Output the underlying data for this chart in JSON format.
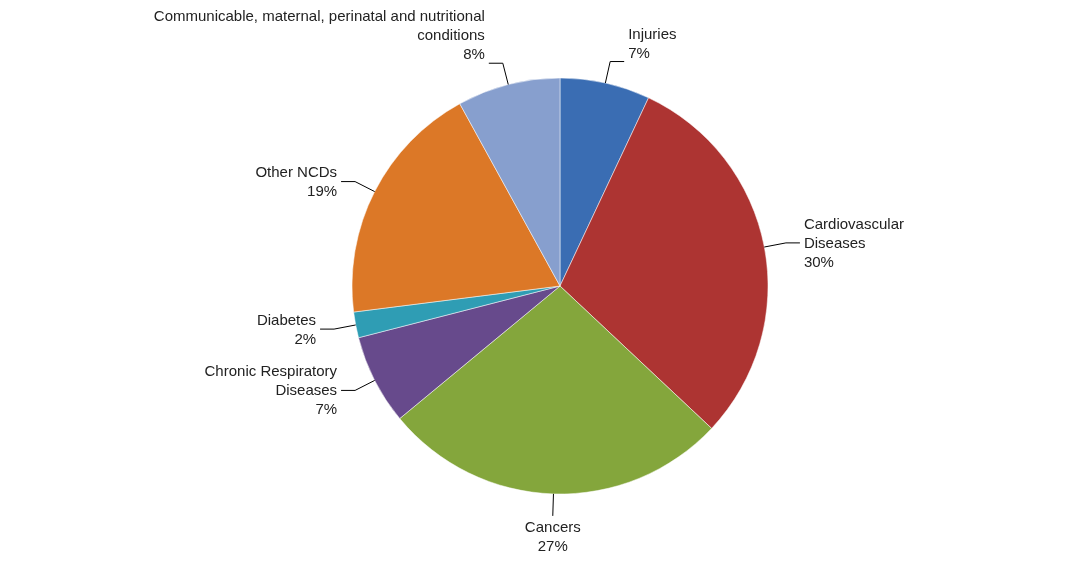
{
  "chart_data": {
    "type": "pie",
    "categories": [
      "Injuries",
      "Cardiovascular Diseases",
      "Cancers",
      "Chronic Respiratory Diseases",
      "Diabetes",
      "Other NCDs",
      "Communicable, maternal, perinatal and nutritional conditions"
    ],
    "values": [
      7,
      30,
      27,
      7,
      2,
      19,
      8
    ],
    "colors": [
      "#3a6db3",
      "#ad3432",
      "#84a63c",
      "#674a8c",
      "#2f9db4",
      "#dc7827",
      "#879fce"
    ],
    "value_labels": [
      "7%",
      "30%",
      "27%",
      "7%",
      "2%",
      "19%",
      "8%"
    ]
  }
}
